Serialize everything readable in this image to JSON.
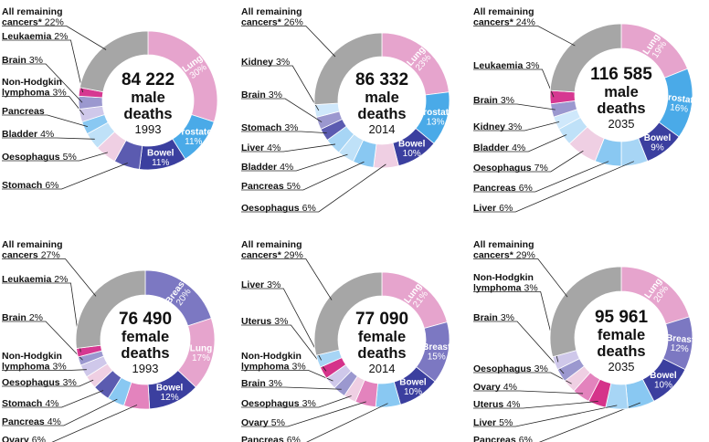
{
  "colors": {
    "remaining": "#a6a6a6",
    "lung": "#e6a4cd",
    "prostate": "#4aaae8",
    "bowel": "#3b3f9f",
    "breast": "#7c78c2",
    "stomach": "#5b5bb0",
    "oesophagus": "#efcfe3",
    "bladder": "#bfe1f8",
    "pancreas": "#89c8f2",
    "nhl": "#cfc8ea",
    "brain": "#9b98cf",
    "leukaemia": "#d63891",
    "kidney": "#cfe8fb",
    "liver": "#a7d5f5",
    "uterus": "#d5338a",
    "ovary": "#e383bd",
    "white": "#ffffff"
  },
  "chart_data": [
    {
      "type": "pie",
      "center": {
        "number": "84 222",
        "word": "male",
        "word2": "deaths",
        "year": "1993"
      },
      "slices": [
        {
          "label": "Lung",
          "value": 30,
          "color": "lung",
          "inside": true
        },
        {
          "label": "Prostate",
          "value": 11,
          "color": "prostate",
          "inside": true
        },
        {
          "label": "Bowel",
          "value": 11,
          "color": "bowel",
          "inside": true
        },
        {
          "label": "Stomach",
          "value": 6,
          "color": "stomach"
        },
        {
          "label": "Oesophagus",
          "value": 5,
          "color": "oesophagus"
        },
        {
          "label": "Bladder",
          "value": 4,
          "color": "bladder"
        },
        {
          "label": "Pancreas",
          "value": 3,
          "color": "pancreas",
          "hide_value": true
        },
        {
          "label": "Non-Hodgkin lymphoma",
          "value": 3,
          "color": "nhl",
          "label_lines": [
            "Non-Hodgkin",
            "lymphoma"
          ]
        },
        {
          "label": "Brain",
          "value": 3,
          "color": "brain"
        },
        {
          "label": "Leukaemia",
          "value": 2,
          "color": "leukaemia"
        },
        {
          "label": "All remaining cancers*",
          "value": 22,
          "color": "remaining",
          "label_lines": [
            "All remaining",
            "cancers*"
          ]
        }
      ]
    },
    {
      "type": "pie",
      "center": {
        "number": "86 332",
        "word": "male",
        "word2": "deaths",
        "year": "2014"
      },
      "slices": [
        {
          "label": "Lung",
          "value": 23,
          "color": "lung",
          "inside": true
        },
        {
          "label": "Prostate",
          "value": 13,
          "color": "prostate",
          "inside": true
        },
        {
          "label": "Bowel",
          "value": 10,
          "color": "bowel",
          "inside": true
        },
        {
          "label": "Oesophagus",
          "value": 6,
          "color": "oesophagus"
        },
        {
          "label": "Pancreas",
          "value": 5,
          "color": "pancreas"
        },
        {
          "label": "Bladder",
          "value": 4,
          "color": "bladder"
        },
        {
          "label": "Liver",
          "value": 4,
          "color": "liver"
        },
        {
          "label": "Stomach",
          "value": 3,
          "color": "stomach"
        },
        {
          "label": "Brain",
          "value": 3,
          "color": "brain"
        },
        {
          "label": "Kidney",
          "value": 3,
          "color": "kidney"
        },
        {
          "label": "All remaining cancers",
          "value": 26,
          "color": "remaining",
          "label_lines": [
            "All remaining",
            "cancers*"
          ]
        }
      ]
    },
    {
      "type": "pie",
      "center": {
        "number": "116 585",
        "word": "male",
        "word2": "deaths",
        "year": "2035"
      },
      "slices": [
        {
          "label": "Lung",
          "value": 19,
          "color": "lung",
          "inside": true
        },
        {
          "label": "Prostate",
          "value": 16,
          "color": "prostate",
          "inside": true
        },
        {
          "label": "Bowel",
          "value": 9,
          "color": "bowel",
          "inside": true
        },
        {
          "label": "Liver",
          "value": 6,
          "color": "liver"
        },
        {
          "label": "Pancreas",
          "value": 6,
          "color": "pancreas"
        },
        {
          "label": "Oesophagus",
          "value": 7,
          "color": "oesophagus"
        },
        {
          "label": "Bladder",
          "value": 4,
          "color": "bladder"
        },
        {
          "label": "Kidney",
          "value": 3,
          "color": "kidney"
        },
        {
          "label": "Brain",
          "value": 3,
          "color": "brain"
        },
        {
          "label": "Leukaemia",
          "value": 3,
          "color": "leukaemia"
        },
        {
          "label": "All remaining cancers",
          "value": 24,
          "color": "remaining",
          "label_lines": [
            "All remaining",
            "cancers*"
          ]
        }
      ]
    },
    {
      "type": "pie",
      "center": {
        "number": "76 490",
        "word": "female",
        "word2": "deaths",
        "year": "1993"
      },
      "slices": [
        {
          "label": "Breast",
          "value": 20,
          "color": "breast",
          "inside": true
        },
        {
          "label": "Lung",
          "value": 17,
          "color": "lung",
          "inside": true
        },
        {
          "label": "Bowel",
          "value": 12,
          "color": "bowel",
          "inside": true
        },
        {
          "label": "Ovary",
          "value": 6,
          "color": "ovary"
        },
        {
          "label": "Pancreas",
          "value": 4,
          "color": "pancreas"
        },
        {
          "label": "Stomach",
          "value": 4,
          "color": "stomach"
        },
        {
          "label": "Oesophagus",
          "value": 3,
          "color": "oesophagus"
        },
        {
          "label": "Non-Hodgkin lymphoma",
          "value": 3,
          "color": "nhl",
          "label_lines": [
            "Non-Hodgkin",
            "lymphoma"
          ]
        },
        {
          "label": "Brain",
          "value": 2,
          "color": "brain"
        },
        {
          "label": "Leukaemia",
          "value": 2,
          "color": "leukaemia"
        },
        {
          "label": "All remaining cancers",
          "value": 27,
          "color": "remaining",
          "label_lines": [
            "All remaining",
            "cancers"
          ]
        }
      ]
    },
    {
      "type": "pie",
      "center": {
        "number": "77 090",
        "word": "female",
        "word2": "deaths",
        "year": "2014"
      },
      "slices": [
        {
          "label": "Lung",
          "value": 21,
          "color": "lung",
          "inside": true
        },
        {
          "label": "Breast",
          "value": 15,
          "color": "breast",
          "inside": true
        },
        {
          "label": "Bowel",
          "value": 10,
          "color": "bowel",
          "inside": true
        },
        {
          "label": "Pancreas",
          "value": 6,
          "color": "pancreas"
        },
        {
          "label": "Ovary",
          "value": 5,
          "color": "ovary"
        },
        {
          "label": "Oesophagus",
          "value": 3,
          "color": "oesophagus"
        },
        {
          "label": "Brain",
          "value": 3,
          "color": "brain"
        },
        {
          "label": "Non-Hodgkin lymphoma",
          "value": 3,
          "color": "nhl",
          "label_lines": [
            "Non-Hodgkin",
            "lymphoma"
          ]
        },
        {
          "label": "Uterus",
          "value": 3,
          "color": "uterus"
        },
        {
          "label": "Liver",
          "value": 3,
          "color": "liver"
        },
        {
          "label": "All remaining cancers",
          "value": 29,
          "color": "remaining",
          "label_lines": [
            "All remaining",
            "cancers*"
          ]
        }
      ]
    },
    {
      "type": "pie",
      "center": {
        "number": "95 961",
        "word": "female",
        "word2": "deaths",
        "year": "2035"
      },
      "slices": [
        {
          "label": "Lung",
          "value": 20,
          "color": "lung",
          "inside": true
        },
        {
          "label": "Breast",
          "value": 12,
          "color": "breast",
          "inside": true
        },
        {
          "label": "Bowel",
          "value": 10,
          "color": "bowel",
          "inside": true
        },
        {
          "label": "Pancreas",
          "value": 6,
          "color": "pancreas"
        },
        {
          "label": "Liver",
          "value": 5,
          "color": "liver"
        },
        {
          "label": "Uterus",
          "value": 4,
          "color": "uterus"
        },
        {
          "label": "Ovary",
          "value": 4,
          "color": "ovary"
        },
        {
          "label": "Oesophagus",
          "value": 3,
          "color": "oesophagus"
        },
        {
          "label": "Brain",
          "value": 3,
          "color": "brain"
        },
        {
          "label": "Non-Hodgkin lymphoma",
          "value": 3,
          "color": "nhl",
          "label_lines": [
            "Non-Hodgkin",
            "lymphoma"
          ]
        },
        {
          "label": "All remaining cancers",
          "value": 29,
          "color": "remaining",
          "label_lines": [
            "All remaining",
            "cancers*"
          ]
        }
      ]
    }
  ]
}
